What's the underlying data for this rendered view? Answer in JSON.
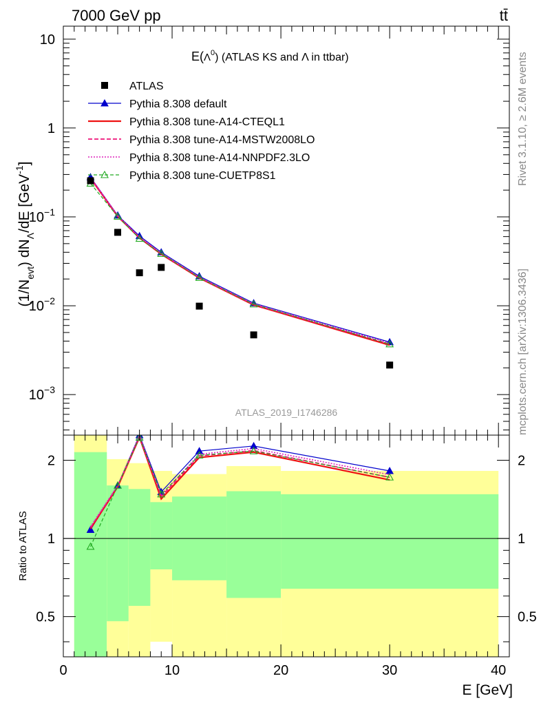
{
  "header": {
    "left": "7000 GeV pp",
    "right": "tt̄"
  },
  "side": {
    "rivet": "Rivet 3.1.10, ≥ 2.6M events",
    "mcplots": "mcplots.cern.ch [arXiv:1306.3436]"
  },
  "chart_data": [
    {
      "type": "line",
      "title_main": "E(",
      "title_sym": "Λ",
      "title_sup": "0",
      "title_rest": ") (ATLAS KS and Λ in ttbar)",
      "ylabel_a": "(1/N",
      "ylabel_a_sub": "evt",
      "ylabel_b": ") dN",
      "ylabel_b_sub": "Λ",
      "ylabel_c": "/dE [GeV",
      "ylabel_c_sup": "-1",
      "ylabel_d": "]",
      "yscale": "log",
      "ylim": [
        0.00035,
        14
      ],
      "xlim": [
        0,
        41
      ],
      "yticks": [
        {
          "v": 0.001,
          "base": "10",
          "exp": "−3"
        },
        {
          "v": 0.01,
          "base": "10",
          "exp": "−2"
        },
        {
          "v": 0.1,
          "base": "10",
          "exp": "−1"
        },
        {
          "v": 1,
          "base": "1",
          "exp": ""
        },
        {
          "v": 10,
          "base": "10",
          "exp": ""
        }
      ],
      "watermark": "ATLAS_2019_I1746286",
      "legend": [
        {
          "label": "ATLAS",
          "style": "data"
        },
        {
          "label": "Pythia 8.308 default",
          "style": "default"
        },
        {
          "label": "Pythia 8.308 tune-A14-CTEQL1",
          "style": "cteql1"
        },
        {
          "label": "Pythia 8.308 tune-A14-MSTW2008LO",
          "style": "mstw"
        },
        {
          "label": "Pythia 8.308 tune-A14-NNPDF2.3LO",
          "style": "nnpdf"
        },
        {
          "label": "Pythia 8.308 tune-CUETP8S1",
          "style": "cuetp"
        }
      ],
      "data": {
        "name": "ATLAS",
        "x": [
          2.5,
          5,
          7,
          9,
          12.5,
          17.5,
          30
        ],
        "y": [
          0.255,
          0.067,
          0.0235,
          0.027,
          0.0099,
          0.0047,
          0.00215
        ]
      },
      "series": [
        {
          "name": "Pythia 8.308 default",
          "style": "default",
          "x": [
            2.5,
            5,
            7,
            9,
            12.5,
            17.5,
            30
          ],
          "y": [
            0.28,
            0.104,
            0.061,
            0.04,
            0.0215,
            0.0107,
            0.0039
          ]
        },
        {
          "name": "Pythia 8.308 tune-A14-CTEQL1",
          "style": "cteql1",
          "x": [
            2.5,
            5,
            7,
            9,
            12.5,
            17.5,
            30
          ],
          "y": [
            0.272,
            0.101,
            0.058,
            0.038,
            0.0205,
            0.0102,
            0.0036
          ]
        },
        {
          "name": "Pythia 8.308 tune-A14-MSTW2008LO",
          "style": "mstw",
          "x": [
            2.5,
            5,
            7,
            9,
            12.5,
            17.5,
            30
          ],
          "y": [
            0.275,
            0.102,
            0.0585,
            0.0385,
            0.0207,
            0.0103,
            0.0037
          ]
        },
        {
          "name": "Pythia 8.308 tune-A14-NNPDF2.3LO",
          "style": "nnpdf",
          "x": [
            2.5,
            5,
            7,
            9,
            12.5,
            17.5,
            30
          ],
          "y": [
            0.277,
            0.103,
            0.059,
            0.039,
            0.021,
            0.0105,
            0.0038
          ]
        },
        {
          "name": "Pythia 8.308 tune-CUETP8S1",
          "style": "cuetp",
          "x": [
            2.5,
            5,
            7,
            9,
            12.5,
            17.5,
            30
          ],
          "y": [
            0.238,
            0.101,
            0.057,
            0.0385,
            0.0207,
            0.0104,
            0.0037
          ]
        }
      ]
    },
    {
      "type": "line",
      "ylabel": "Ratio to ATLAS",
      "xlabel": "E [GeV]",
      "yscale": "log",
      "ylim": [
        0.35,
        2.5
      ],
      "xlim": [
        0,
        41
      ],
      "xticks": [
        0,
        10,
        20,
        30,
        40
      ],
      "yticks": [
        {
          "v": 0.5,
          "label": "0.5"
        },
        {
          "v": 1,
          "label": "1"
        },
        {
          "v": 2,
          "label": "2"
        }
      ],
      "bands": [
        {
          "x0": 1,
          "x1": 4,
          "g0": 0.35,
          "g1": 2.15,
          "y0": 0.35,
          "y1": 2.5
        },
        {
          "x0": 4,
          "x1": 6,
          "g0": 0.48,
          "g1": 1.6,
          "y0": 0.35,
          "y1": 2.02
        },
        {
          "x0": 6,
          "x1": 8,
          "g0": 0.55,
          "g1": 1.55,
          "y0": 0.35,
          "y1": 1.95
        },
        {
          "x0": 8,
          "x1": 10,
          "g0": 0.76,
          "g1": 1.38,
          "y0": 0.4,
          "y1": 1.82
        },
        {
          "x0": 10,
          "x1": 15,
          "g0": 0.69,
          "g1": 1.45,
          "y0": 0.35,
          "y1": 1.77
        },
        {
          "x0": 15,
          "x1": 20,
          "g0": 0.59,
          "g1": 1.52,
          "y0": 0.35,
          "y1": 1.9
        },
        {
          "x0": 20,
          "x1": 40,
          "g0": 0.64,
          "g1": 1.48,
          "y0": 0.35,
          "y1": 1.82
        }
      ],
      "series": [
        {
          "name": "Pythia 8.308 default",
          "style": "default",
          "x": [
            2.5,
            5,
            7,
            9,
            12.5,
            17.5,
            30
          ],
          "y": [
            1.08,
            1.6,
            2.5,
            1.51,
            2.17,
            2.27,
            1.82
          ]
        },
        {
          "name": "Pythia 8.308 tune-A14-CTEQL1",
          "style": "cteql1",
          "x": [
            2.5,
            5,
            7,
            9,
            12.5,
            17.5,
            30
          ],
          "y": [
            1.09,
            1.58,
            2.45,
            1.42,
            2.05,
            2.15,
            1.68
          ]
        },
        {
          "name": "Pythia 8.308 tune-A14-MSTW2008LO",
          "style": "mstw",
          "x": [
            2.5,
            5,
            7,
            9,
            12.5,
            17.5,
            30
          ],
          "y": [
            1.1,
            1.59,
            2.47,
            1.45,
            2.08,
            2.18,
            1.72
          ]
        },
        {
          "name": "Pythia 8.308 tune-A14-NNPDF2.3LO",
          "style": "nnpdf",
          "x": [
            2.5,
            5,
            7,
            9,
            12.5,
            17.5,
            30
          ],
          "y": [
            1.11,
            1.6,
            2.48,
            1.47,
            2.11,
            2.22,
            1.76
          ]
        },
        {
          "name": "Pythia 8.308 tune-CUETP8S1",
          "style": "cuetp",
          "x": [
            2.5,
            5,
            7,
            9,
            12.5,
            17.5,
            30
          ],
          "y": [
            0.93,
            1.6,
            2.45,
            1.48,
            2.09,
            2.17,
            1.72
          ]
        }
      ]
    }
  ],
  "colors": {
    "data": "#000000",
    "default": "#0000cc",
    "cteql1": "#ee1111",
    "mstw": "#ee1177",
    "nnpdf": "#dd22bb",
    "cuetp": "#22aa22",
    "band_inner": "#99ff99",
    "band_outer": "#ffff99"
  }
}
